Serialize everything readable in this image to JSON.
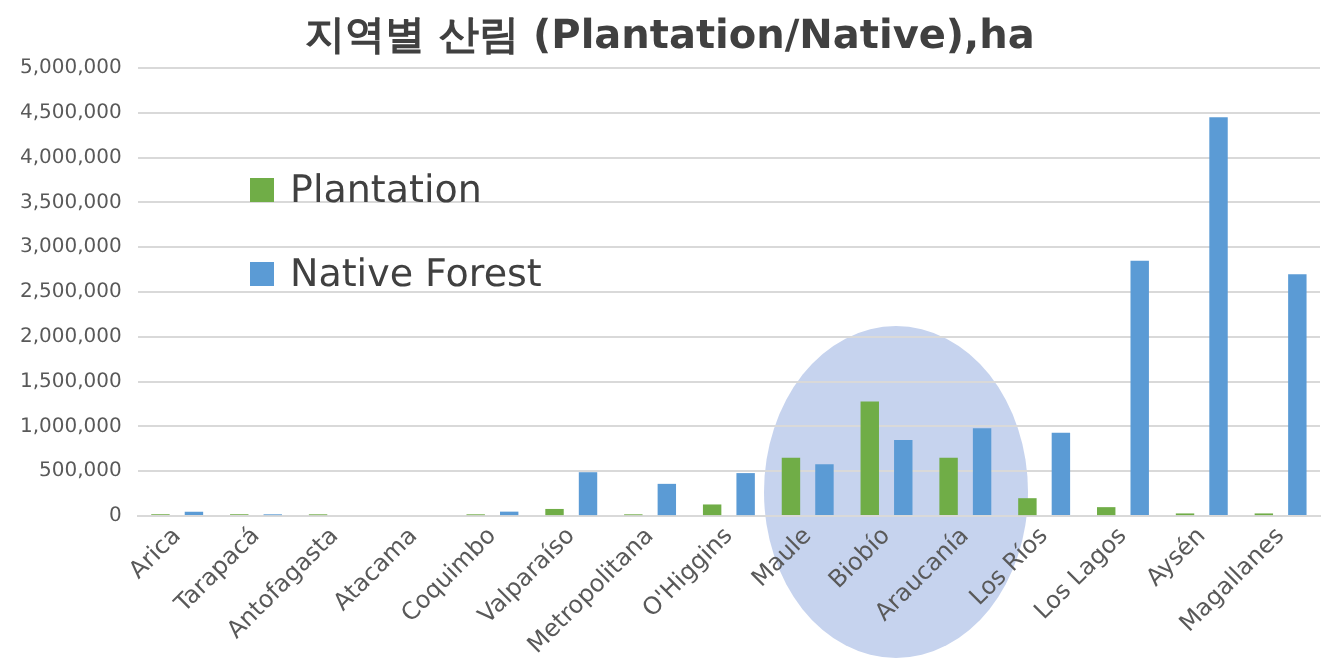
{
  "chart_data": {
    "type": "bar",
    "title": "지역별 산림 (Plantation/Native),ha",
    "categories": [
      "Arica",
      "Tarapacá",
      "Antofagasta",
      "Atacama",
      "Coquimbo",
      "Valparaíso",
      "Metropolitana",
      "O'Higgins",
      "Maule",
      "Biobío",
      "Araucanía",
      "Los Ríos",
      "Los Lagos",
      "Aysén",
      "Magallanes"
    ],
    "series": [
      {
        "name": "Plantation",
        "color": "#70ad47",
        "values": [
          20000,
          20000,
          20000,
          0,
          20000,
          80000,
          20000,
          130000,
          650000,
          1280000,
          650000,
          200000,
          100000,
          30000,
          30000
        ]
      },
      {
        "name": "Native Forest",
        "color": "#5b9bd5",
        "values": [
          50000,
          20000,
          0,
          0,
          50000,
          490000,
          360000,
          480000,
          580000,
          850000,
          980000,
          930000,
          2850000,
          4450000,
          2700000
        ]
      }
    ],
    "ylim": [
      0,
      5000000
    ],
    "yticks": [
      0,
      {
        "value": 500000,
        "label": "500,000"
      },
      {
        "value": 1000000,
        "label": "1,000,000"
      },
      {
        "value": 1500000,
        "label": "1,500,000"
      },
      {
        "value": 2000000,
        "label": "2,000,000"
      },
      {
        "value": 2500000,
        "label": "2,500,000"
      },
      {
        "value": 3000000,
        "label": "3,000,000"
      },
      {
        "value": 3500000,
        "label": "3,500,000"
      },
      {
        "value": 4000000,
        "label": "4,000,000"
      },
      {
        "value": 4500000,
        "label": "4,500,000"
      },
      {
        "value": 5000000,
        "label": "5,000,000"
      }
    ],
    "grid": "y",
    "legend": "top left"
  }
}
